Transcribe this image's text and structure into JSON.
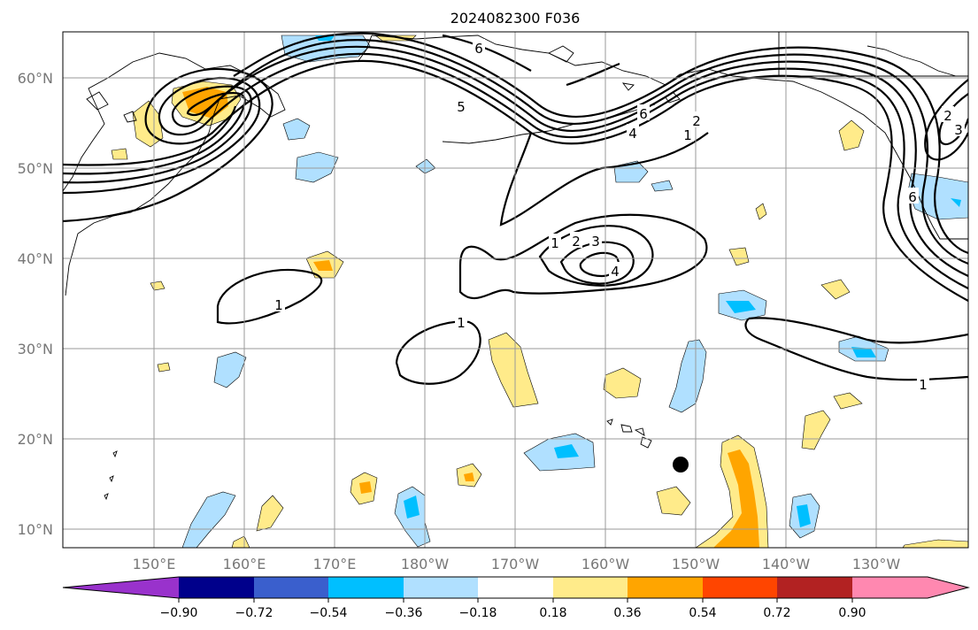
{
  "title": "2024082300 F036",
  "map": {
    "lat_labels": [
      "60°N",
      "50°N",
      "40°N",
      "30°N",
      "20°N",
      "10°N"
    ],
    "lon_labels": [
      "150°E",
      "160°E",
      "170°E",
      "180°W",
      "170°W",
      "160°W",
      "150°W",
      "140°W",
      "130°W"
    ],
    "contour_labels": [
      "6",
      "5",
      "6",
      "4",
      "2",
      "1",
      "1",
      "2",
      "3",
      "4",
      "1",
      "1",
      "1",
      "6",
      "3",
      "2"
    ]
  },
  "colorbar": {
    "tick_labels": [
      "−0.90",
      "−0.72",
      "−0.54",
      "−0.36",
      "−0.18",
      "0.18",
      "0.36",
      "0.54",
      "0.72",
      "0.90"
    ],
    "colors": [
      "#9932cc",
      "#00008b",
      "#3a5fcd",
      "#00bfff",
      "#b0e0ff",
      "#ffffff",
      "#ffeb8a",
      "#ffa500",
      "#ff4500",
      "#b22222",
      "#ff88b0"
    ]
  },
  "shading_colors": {
    "light_blue": "#b0e0ff",
    "blue": "#00bfff",
    "light_yellow": "#ffeb8a",
    "orange": "#ffa500"
  }
}
